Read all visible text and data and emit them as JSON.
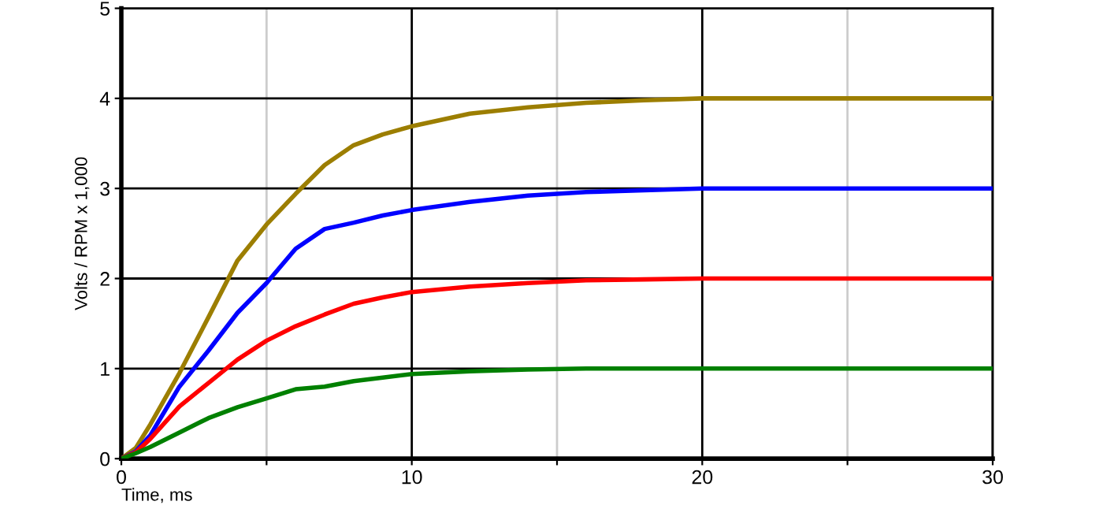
{
  "chart_data": {
    "type": "line",
    "xlabel": "Time, ms",
    "ylabel": "Volts / RPM x 1,000",
    "x": [
      0,
      0.5,
      1,
      2,
      3,
      4,
      5,
      6,
      7,
      8,
      9,
      10,
      12,
      14,
      16,
      18,
      20,
      25,
      30
    ],
    "series": [
      {
        "color": "#9c7e00",
        "values": [
          0,
          0.12,
          0.38,
          0.95,
          1.57,
          2.2,
          2.6,
          2.94,
          3.26,
          3.48,
          3.6,
          3.69,
          3.83,
          3.9,
          3.95,
          3.98,
          4,
          4,
          4
        ]
      },
      {
        "color": "#0000ff",
        "values": [
          0,
          0.08,
          0.26,
          0.8,
          1.2,
          1.62,
          1.95,
          2.33,
          2.55,
          2.62,
          2.7,
          2.76,
          2.85,
          2.92,
          2.96,
          2.98,
          3,
          3,
          3
        ]
      },
      {
        "color": "#ff0000",
        "values": [
          0,
          0.07,
          0.22,
          0.58,
          0.84,
          1.1,
          1.31,
          1.47,
          1.6,
          1.72,
          1.79,
          1.85,
          1.91,
          1.95,
          1.98,
          1.99,
          2,
          2,
          2
        ]
      },
      {
        "color": "#008000",
        "values": [
          0,
          0.06,
          0.13,
          0.29,
          0.45,
          0.57,
          0.67,
          0.77,
          0.8,
          0.86,
          0.9,
          0.94,
          0.97,
          0.99,
          1,
          1,
          1,
          1,
          1
        ]
      }
    ],
    "xlim": [
      0,
      30
    ],
    "xticks": [
      0,
      {
        "value": 5,
        "label": null
      },
      10,
      {
        "value": 15,
        "label": null
      },
      20,
      {
        "value": 25,
        "label": null
      },
      30
    ],
    "ylim": [
      0,
      5
    ],
    "yticks": [
      0,
      1,
      2,
      3,
      4,
      5
    ],
    "grid": true,
    "marker": "none",
    "line_style": "solid",
    "legend": false
  }
}
